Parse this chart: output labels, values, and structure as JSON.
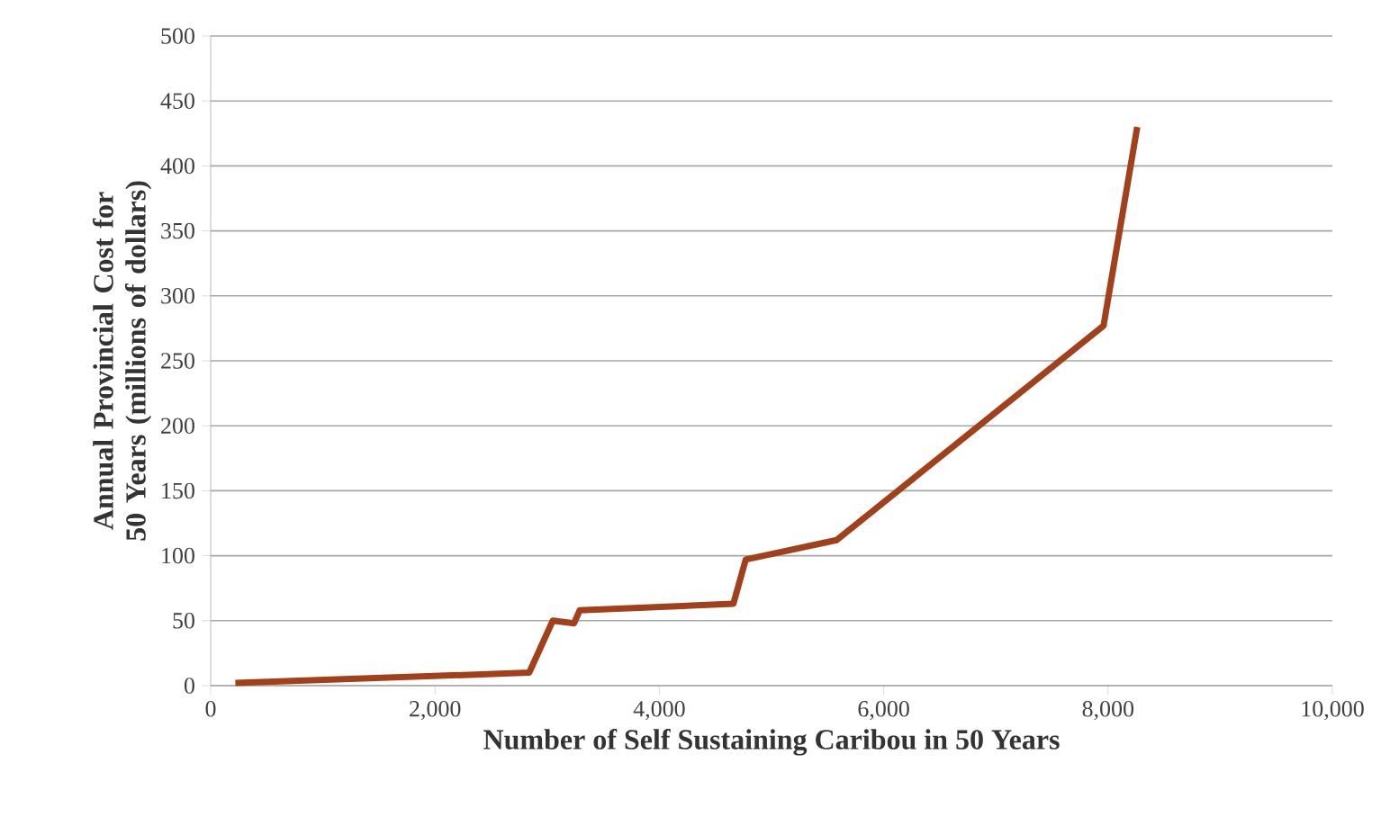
{
  "chart_data": {
    "type": "line",
    "xlabel": "Number of Self Sustaining Caribou in 50 Years",
    "ylabel": "Annual Provincial Cost for 50 Years (millions of dollars)",
    "x": [
      220,
      2840,
      3050,
      3240,
      3290,
      4660,
      4770,
      5580,
      7960,
      8260
    ],
    "series": [
      {
        "color": "#a3401c",
        "values": [
          2,
          10,
          50,
          48,
          58,
          63,
          97,
          112,
          277,
          430
        ]
      }
    ],
    "xlim": [
      0,
      10000
    ],
    "ylim": [
      0,
      500
    ],
    "xticks": [
      0,
      {
        "value": 2000,
        "label": "2,000"
      },
      {
        "value": 4000,
        "label": "4,000"
      },
      {
        "value": 6000,
        "label": "6,000"
      },
      {
        "value": 8000,
        "label": "8,000"
      },
      {
        "value": 10000,
        "label": "10,000"
      }
    ],
    "yticks": [
      0,
      50,
      100,
      150,
      200,
      250,
      300,
      350,
      400,
      450,
      500
    ],
    "grid": "y",
    "marker": "none",
    "line_style": "solid"
  }
}
